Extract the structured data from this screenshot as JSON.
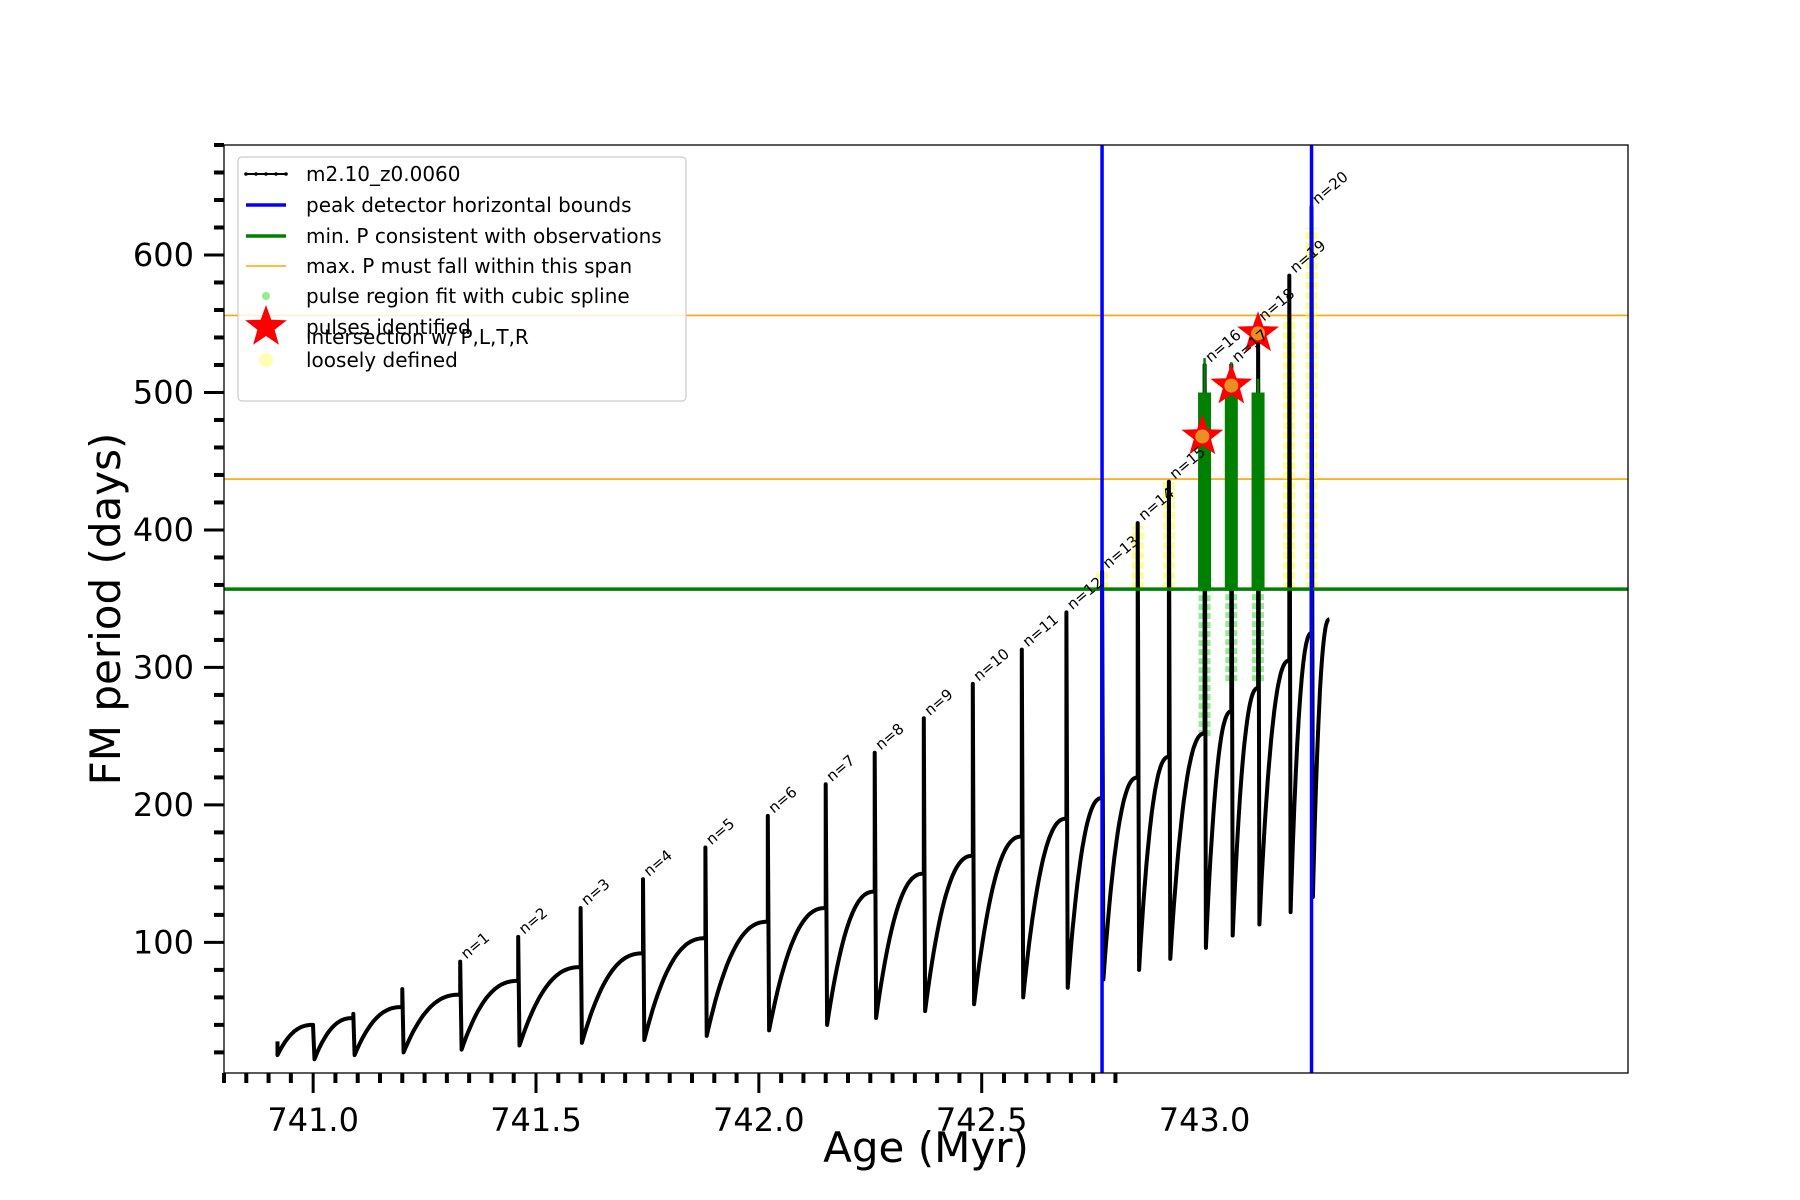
{
  "chart_data": {
    "type": "line",
    "xlabel": "Age (Myr)",
    "ylabel": "FM period (days)",
    "xlim": [
      740.8,
      743.95
    ],
    "ylim": [
      5,
      680
    ],
    "x_ticks": [
      741.0,
      741.5,
      742.0,
      742.5,
      743.0
    ],
    "x_tick_labels": [
      "741.0",
      "741.5",
      "742.0",
      "742.5",
      "743.0"
    ],
    "y_ticks": [
      100,
      200,
      300,
      400,
      500,
      600
    ],
    "y_tick_labels": [
      "100",
      "200",
      "300",
      "400",
      "500",
      "600"
    ],
    "legend_position": "top-left",
    "legend": [
      {
        "label": "m2.10_z0.0060",
        "style": "line-marker",
        "color": "#000000"
      },
      {
        "label": "peak detector horizontal bounds",
        "style": "line",
        "color": "#0000ff"
      },
      {
        "label": "min. P consistent with observations",
        "style": "line",
        "color": "#008000"
      },
      {
        "label": "max. P must fall within this span",
        "style": "thin-line",
        "color": "#ffa500"
      },
      {
        "label": "pulse region fit with cubic spline",
        "style": "dot",
        "color": "#90ee90"
      },
      {
        "label": "pulses identified",
        "style": "star",
        "color": "#ff0000"
      },
      {
        "label": "intersection w/ P,L,T,R\nloosely defined",
        "style": "dot",
        "color": "#ffffb0"
      }
    ],
    "series": [
      {
        "name": "m2.10_z0.0060",
        "color": "#000000",
        "pre_pulse": {
          "x": 740.92,
          "y0": 18,
          "y1": 28
        },
        "pulses": [
          {
            "x": 741.0,
            "low": 15,
            "peak": 38,
            "end_y": 40,
            "label": ""
          },
          {
            "x": 741.09,
            "low": 18,
            "peak": 48,
            "end_y": 45,
            "label": ""
          },
          {
            "x": 741.2,
            "low": 20,
            "peak": 66,
            "end_y": 53,
            "label": ""
          },
          {
            "x": 741.33,
            "low": 22,
            "peak": 86,
            "end_y": 62,
            "label": "n=1"
          },
          {
            "x": 741.46,
            "low": 25,
            "peak": 104,
            "end_y": 72,
            "label": "n=2"
          },
          {
            "x": 741.6,
            "low": 27,
            "peak": 125,
            "end_y": 82,
            "label": "n=3"
          },
          {
            "x": 741.74,
            "low": 29,
            "peak": 146,
            "end_y": 92,
            "label": "n=4"
          },
          {
            "x": 741.88,
            "low": 32,
            "peak": 169,
            "end_y": 103,
            "label": "n=5"
          },
          {
            "x": 742.02,
            "low": 36,
            "peak": 192,
            "end_y": 115,
            "label": "n=6"
          },
          {
            "x": 742.15,
            "low": 40,
            "peak": 215,
            "end_y": 125,
            "label": "n=7"
          },
          {
            "x": 742.26,
            "low": 45,
            "peak": 238,
            "end_y": 137,
            "label": "n=8"
          },
          {
            "x": 742.37,
            "low": 50,
            "peak": 263,
            "end_y": 150,
            "label": "n=9"
          },
          {
            "x": 742.48,
            "low": 55,
            "peak": 288,
            "end_y": 163,
            "label": "n=10"
          },
          {
            "x": 742.59,
            "low": 60,
            "peak": 313,
            "end_y": 177,
            "label": "n=11"
          },
          {
            "x": 742.69,
            "low": 67,
            "peak": 340,
            "end_y": 190,
            "label": "n=12"
          },
          {
            "x": 742.77,
            "low": 73,
            "peak": 370,
            "end_y": 205,
            "label": "n=13"
          },
          {
            "x": 742.85,
            "low": 80,
            "peak": 405,
            "end_y": 220,
            "label": "n=14"
          },
          {
            "x": 742.92,
            "low": 88,
            "peak": 435,
            "end_y": 235,
            "label": "n=15"
          },
          {
            "x": 743.0,
            "low": 96,
            "peak": 520,
            "end_y": 252,
            "label": "n=16"
          },
          {
            "x": 743.06,
            "low": 105,
            "peak": 520,
            "end_y": 268,
            "label": "n=17"
          },
          {
            "x": 743.12,
            "low": 113,
            "peak": 550,
            "end_y": 285,
            "label": "n=18"
          },
          {
            "x": 743.19,
            "low": 122,
            "peak": 585,
            "end_y": 305,
            "label": "n=19"
          },
          {
            "x": 743.24,
            "low": 133,
            "peak": 635,
            "end_y": 325,
            "label": "n=20"
          }
        ],
        "final": {
          "x": 743.28,
          "y": 335
        }
      }
    ],
    "peak_detector_bounds": {
      "x": [
        742.77,
        743.24
      ],
      "color": "#0000ff"
    },
    "min_period_line": {
      "y": 357,
      "color": "#008000"
    },
    "max_period_span": {
      "y": [
        437,
        556
      ],
      "color": "#ffa500"
    },
    "pulses_identified": {
      "color": "#ff0000",
      "points": [
        {
          "x": 742.995,
          "y": 468
        },
        {
          "x": 743.06,
          "y": 505
        },
        {
          "x": 743.12,
          "y": 543
        }
      ]
    },
    "cubic_spline_regions": {
      "color": "#90ee90",
      "regions": [
        {
          "x": 743.0,
          "y0": 250,
          "y1": 500
        },
        {
          "x": 743.06,
          "y0": 290,
          "y1": 500
        },
        {
          "x": 743.12,
          "y0": 290,
          "y1": 500
        }
      ]
    },
    "pulse_region_cores": {
      "color": "#008000",
      "regions": [
        {
          "x": 743.0,
          "y0": 357,
          "y1": 500,
          "spike": 525
        },
        {
          "x": 743.06,
          "y0": 357,
          "y1": 500,
          "spike": 522
        },
        {
          "x": 743.12,
          "y0": 357,
          "y1": 500,
          "spike": 510
        }
      ]
    },
    "loosely_defined_regions": {
      "color": "#ffff33",
      "regions": [
        {
          "x": 742.77,
          "y0": 357,
          "y1": 372
        },
        {
          "x": 742.85,
          "y0": 357,
          "y1": 403
        },
        {
          "x": 742.92,
          "y0": 357,
          "y1": 435
        },
        {
          "x": 743.19,
          "y0": 357,
          "y1": 555
        },
        {
          "x": 743.24,
          "y0": 357,
          "y1": 620
        }
      ]
    }
  }
}
